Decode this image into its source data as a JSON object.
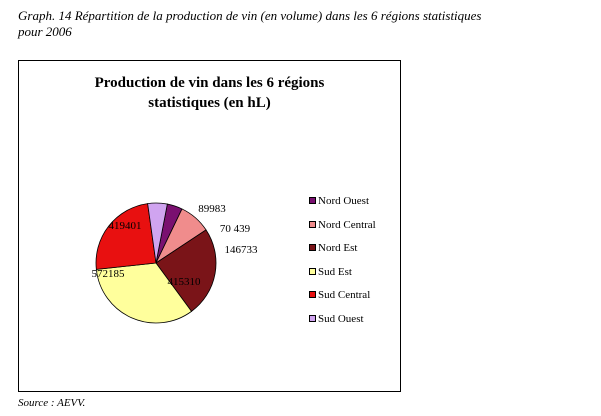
{
  "caption": {
    "line1": "Graph. 14 Répartition de la production de vin (en volume) dans les 6 régions statistiques",
    "line2": "pour 2006"
  },
  "chart_data": {
    "type": "pie",
    "title_lines": [
      "Production de vin dans les 6 régions",
      "statistiques (en hL)"
    ],
    "categories": [
      "Nord Ouest",
      "Nord Central",
      "Nord Est",
      "Sud Est",
      "Sud Central",
      "Sud Ouest"
    ],
    "values": [
      70439,
      146733,
      415310,
      572185,
      419401,
      89983
    ],
    "data_labels": [
      "70 439",
      "146733",
      "415310",
      "572185",
      "419401",
      "89983"
    ],
    "colors": [
      "#7a1070",
      "#f08c8c",
      "#7a1418",
      "#ffff9c",
      "#e81010",
      "#d0a4f0"
    ],
    "legend_position": "right"
  },
  "source": "Source : AEVV."
}
